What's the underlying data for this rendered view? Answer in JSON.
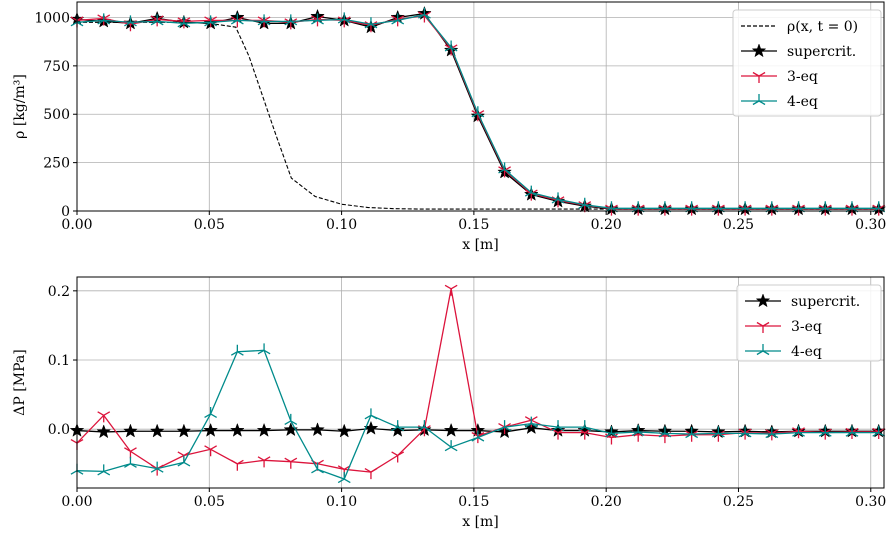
{
  "chart_data": [
    {
      "type": "line",
      "xlabel": "x [m]",
      "ylabel": "ρ [kg/m³]",
      "xlim": [
        0.0,
        0.305
      ],
      "ylim": [
        0,
        1080
      ],
      "xticks": [
        "0.00",
        "0.05",
        "0.10",
        "0.15",
        "0.20",
        "0.25",
        "0.30"
      ],
      "yticks": [
        "0",
        "250",
        "500",
        "750",
        "1000"
      ],
      "grid": true,
      "legend_position": "top-right",
      "series": [
        {
          "name": "ρ(x, t = 0)",
          "color": "#000000",
          "style": "dashed",
          "marker": "none",
          "x": [
            0.0,
            0.01,
            0.02,
            0.03,
            0.04,
            0.05,
            0.06,
            0.065,
            0.07,
            0.075,
            0.081,
            0.09,
            0.1,
            0.11,
            0.12,
            0.13,
            0.15,
            0.2,
            0.25,
            0.305
          ],
          "y": [
            975,
            975,
            975,
            975,
            975,
            970,
            950,
            800,
            600,
            400,
            170,
            75,
            35,
            18,
            12,
            10,
            10,
            10,
            10,
            10
          ]
        },
        {
          "name": "supercrit.",
          "color": "#000000",
          "style": "solid",
          "marker": "star",
          "x": [
            0.0,
            0.0101,
            0.0202,
            0.0303,
            0.0404,
            0.0505,
            0.0606,
            0.0707,
            0.0808,
            0.0909,
            0.101,
            0.1111,
            0.1212,
            0.1313,
            0.1414,
            0.1515,
            0.1616,
            0.1717,
            0.1818,
            0.1919,
            0.202,
            0.2121,
            0.2222,
            0.2323,
            0.2424,
            0.2525,
            0.2626,
            0.2727,
            0.2828,
            0.2929,
            0.303
          ],
          "y": [
            990,
            980,
            970,
            995,
            975,
            970,
            1000,
            970,
            970,
            1005,
            985,
            950,
            1000,
            1020,
            830,
            490,
            200,
            85,
            50,
            25,
            10,
            10,
            10,
            10,
            10,
            10,
            10,
            10,
            10,
            10,
            10
          ]
        },
        {
          "name": "3-eq",
          "color": "#dc143c",
          "style": "solid",
          "marker": "tri_down",
          "x": [
            0.0,
            0.0101,
            0.0202,
            0.0303,
            0.0404,
            0.0505,
            0.0606,
            0.0707,
            0.0808,
            0.0909,
            0.101,
            0.1111,
            0.1212,
            0.1313,
            0.1414,
            0.1515,
            0.1616,
            0.1717,
            0.1818,
            0.1919,
            0.202,
            0.2121,
            0.2222,
            0.2323,
            0.2424,
            0.2525,
            0.2626,
            0.2727,
            0.2828,
            0.2929,
            0.303
          ],
          "y": [
            985,
            995,
            965,
            990,
            980,
            985,
            985,
            985,
            975,
            990,
            985,
            960,
            990,
            1010,
            840,
            500,
            210,
            90,
            55,
            30,
            12,
            12,
            12,
            12,
            12,
            12,
            12,
            12,
            12,
            12,
            12
          ]
        },
        {
          "name": "4-eq",
          "color": "#008b8b",
          "style": "solid",
          "marker": "tri_up",
          "x": [
            0.0,
            0.0101,
            0.0202,
            0.0303,
            0.0404,
            0.0505,
            0.0606,
            0.0707,
            0.0808,
            0.0909,
            0.101,
            0.1111,
            0.1212,
            0.1313,
            0.1414,
            0.1515,
            0.1616,
            0.1717,
            0.1818,
            0.1919,
            0.202,
            0.2121,
            0.2222,
            0.2323,
            0.2424,
            0.2525,
            0.2626,
            0.2727,
            0.2828,
            0.2929,
            0.303
          ],
          "y": [
            975,
            985,
            975,
            980,
            970,
            975,
            985,
            980,
            980,
            985,
            990,
            965,
            985,
            1015,
            845,
            505,
            215,
            95,
            60,
            32,
            14,
            14,
            14,
            14,
            14,
            14,
            14,
            14,
            14,
            14,
            14
          ]
        }
      ]
    },
    {
      "type": "line",
      "xlabel": "x [m]",
      "ylabel": "ΔP [MPa]",
      "xlim": [
        0.0,
        0.305
      ],
      "ylim": [
        -0.085,
        0.22
      ],
      "xticks": [
        "0.00",
        "0.05",
        "0.10",
        "0.15",
        "0.20",
        "0.25",
        "0.30"
      ],
      "yticks": [
        "0.0",
        "0.1",
        "0.2"
      ],
      "grid": true,
      "legend_position": "top-right",
      "series": [
        {
          "name": "supercrit.",
          "color": "#000000",
          "style": "solid",
          "marker": "star",
          "x": [
            0.0,
            0.0101,
            0.0202,
            0.0303,
            0.0404,
            0.0505,
            0.0606,
            0.0707,
            0.0808,
            0.0909,
            0.101,
            0.1111,
            0.1212,
            0.1313,
            0.1414,
            0.1515,
            0.1616,
            0.1717,
            0.1818,
            0.1919,
            0.202,
            0.2121,
            0.2222,
            0.2323,
            0.2424,
            0.2525,
            0.2626,
            0.2727,
            0.2828,
            0.2929,
            0.303
          ],
          "y": [
            -0.002,
            -0.004,
            -0.003,
            -0.003,
            -0.003,
            -0.002,
            -0.002,
            -0.002,
            -0.001,
            -0.001,
            -0.003,
            0.001,
            -0.002,
            -0.001,
            -0.002,
            -0.002,
            -0.004,
            0.002,
            -0.002,
            -0.002,
            -0.004,
            -0.002,
            -0.003,
            -0.003,
            -0.004,
            -0.003,
            -0.004,
            -0.003,
            -0.003,
            -0.003,
            -0.003
          ]
        },
        {
          "name": "3-eq",
          "color": "#dc143c",
          "style": "solid",
          "marker": "tri_down",
          "x": [
            0.0,
            0.0101,
            0.0202,
            0.0303,
            0.0404,
            0.0505,
            0.0606,
            0.0707,
            0.0808,
            0.0909,
            0.101,
            0.1111,
            0.1212,
            0.1313,
            0.1414,
            0.1515,
            0.1616,
            0.1717,
            0.1818,
            0.1919,
            0.202,
            0.2121,
            0.2222,
            0.2323,
            0.2424,
            0.2525,
            0.2626,
            0.2727,
            0.2828,
            0.2929,
            0.303
          ],
          "y": [
            -0.02,
            0.02,
            -0.032,
            -0.057,
            -0.038,
            -0.029,
            -0.05,
            -0.045,
            -0.047,
            -0.05,
            -0.058,
            -0.062,
            -0.038,
            0.0,
            0.203,
            -0.01,
            0.003,
            0.013,
            -0.005,
            -0.005,
            -0.012,
            -0.008,
            -0.01,
            -0.008,
            -0.008,
            -0.005,
            -0.006,
            -0.003,
            -0.005,
            -0.004,
            -0.004
          ]
        },
        {
          "name": "4-eq",
          "color": "#008b8b",
          "style": "solid",
          "marker": "tri_up",
          "x": [
            0.0,
            0.0101,
            0.0202,
            0.0303,
            0.0404,
            0.0505,
            0.0606,
            0.0707,
            0.0808,
            0.0909,
            0.101,
            0.1111,
            0.1212,
            0.1313,
            0.1414,
            0.1515,
            0.1616,
            0.1717,
            0.1818,
            0.1919,
            0.202,
            0.2121,
            0.2222,
            0.2323,
            0.2424,
            0.2525,
            0.2626,
            0.2727,
            0.2828,
            0.2929,
            0.303
          ],
          "y": [
            -0.06,
            -0.061,
            -0.05,
            -0.057,
            -0.048,
            0.022,
            0.112,
            0.114,
            0.012,
            -0.058,
            -0.072,
            0.02,
            0.003,
            0.003,
            -0.026,
            -0.012,
            0.003,
            0.008,
            0.003,
            0.003,
            -0.006,
            -0.004,
            -0.006,
            -0.007,
            -0.006,
            -0.006,
            -0.007,
            -0.005,
            -0.005,
            -0.005,
            -0.005
          ]
        }
      ]
    }
  ]
}
